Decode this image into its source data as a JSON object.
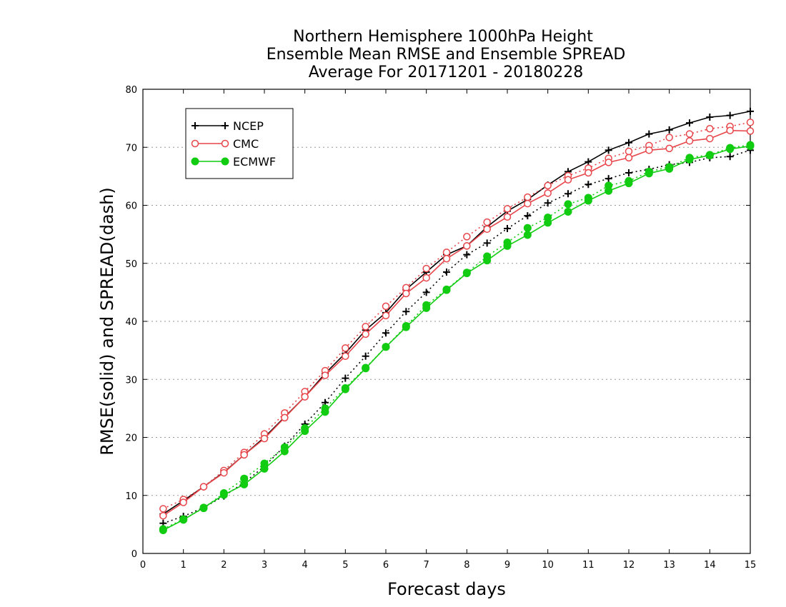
{
  "chart_data": {
    "type": "line",
    "title_lines": [
      "Northern Hemisphere 1000hPa Height",
      "Ensemble Mean RMSE and Ensemble SPREAD",
      "Average For 20171201 - 20180228"
    ],
    "xlabel": "Forecast days",
    "ylabel": "RMSE(solid) and SPREAD(dash)",
    "xlim": [
      0,
      15
    ],
    "ylim": [
      0,
      80
    ],
    "xticks": [
      0,
      1,
      2,
      3,
      4,
      5,
      6,
      7,
      8,
      9,
      10,
      11,
      12,
      13,
      14,
      15
    ],
    "yticks": [
      0,
      10,
      20,
      30,
      40,
      50,
      60,
      70,
      80
    ],
    "grid": "horizontal dotted",
    "legend_position": "top-left",
    "x": [
      0.5,
      1,
      1.5,
      2,
      2.5,
      3,
      3.5,
      4,
      4.5,
      5,
      5.5,
      6,
      6.5,
      7,
      7.5,
      8,
      8.5,
      9,
      9.5,
      10,
      10.5,
      11,
      11.5,
      12,
      12.5,
      13,
      13.5,
      14,
      14.5,
      15
    ],
    "series": [
      {
        "name": "NCEP",
        "color": "#000000",
        "marker": "plus",
        "rmse": [
          6.8,
          9.1,
          11.5,
          14.0,
          17.0,
          20.0,
          23.5,
          27.0,
          31.0,
          34.5,
          38.5,
          41.5,
          45.5,
          48.5,
          51.5,
          53.0,
          56.3,
          59.0,
          61.0,
          63.5,
          65.8,
          67.5,
          69.5,
          70.8,
          72.3,
          73.0,
          74.2,
          75.2,
          75.5,
          76.2
        ],
        "spread": [
          5.2,
          6.4,
          7.9,
          9.9,
          12.2,
          15.0,
          18.5,
          22.3,
          26.0,
          30.2,
          34.0,
          38.0,
          41.7,
          45.0,
          48.5,
          51.5,
          53.5,
          56.0,
          58.2,
          60.4,
          62.0,
          63.6,
          64.6,
          65.6,
          66.2,
          67.0,
          67.4,
          68.2,
          68.4,
          69.5
        ]
      },
      {
        "name": "CMC",
        "color": "#e8454a",
        "marker": "open-circle",
        "rmse": [
          6.5,
          8.8,
          11.5,
          13.9,
          17.0,
          19.8,
          23.4,
          27.0,
          30.7,
          34.0,
          37.8,
          41.0,
          44.8,
          47.5,
          50.8,
          53.0,
          55.9,
          58.0,
          60.3,
          62.1,
          64.4,
          65.6,
          67.4,
          68.2,
          69.5,
          69.8,
          71.1,
          71.5,
          72.9,
          72.8
        ],
        "spread": [
          7.7,
          9.3,
          11.5,
          14.3,
          17.4,
          20.6,
          24.2,
          27.9,
          31.5,
          35.4,
          39.1,
          42.6,
          45.8,
          49.1,
          51.9,
          54.6,
          57.1,
          59.4,
          61.4,
          63.4,
          65.1,
          66.4,
          68.1,
          69.3,
          70.3,
          71.7,
          72.3,
          73.2,
          73.6,
          74.3
        ]
      },
      {
        "name": "ECMWF",
        "color": "#11cc11",
        "marker": "filled-circle",
        "rmse": [
          4.0,
          5.8,
          7.9,
          10.1,
          11.9,
          14.6,
          17.6,
          21.1,
          24.4,
          28.3,
          31.9,
          35.6,
          39.0,
          42.3,
          45.4,
          48.3,
          50.5,
          53.0,
          54.9,
          57.0,
          58.9,
          60.8,
          62.5,
          63.8,
          65.5,
          66.3,
          67.9,
          68.6,
          69.7,
          70.2
        ],
        "spread": [
          4.2,
          5.9,
          7.8,
          10.4,
          12.9,
          15.5,
          18.3,
          21.6,
          25.0,
          28.5,
          32.0,
          35.6,
          39.2,
          42.8,
          45.5,
          48.4,
          51.2,
          53.6,
          56.1,
          57.9,
          60.2,
          61.3,
          63.4,
          64.2,
          65.8,
          66.6,
          68.2,
          68.7,
          69.9,
          70.4
        ]
      }
    ]
  }
}
